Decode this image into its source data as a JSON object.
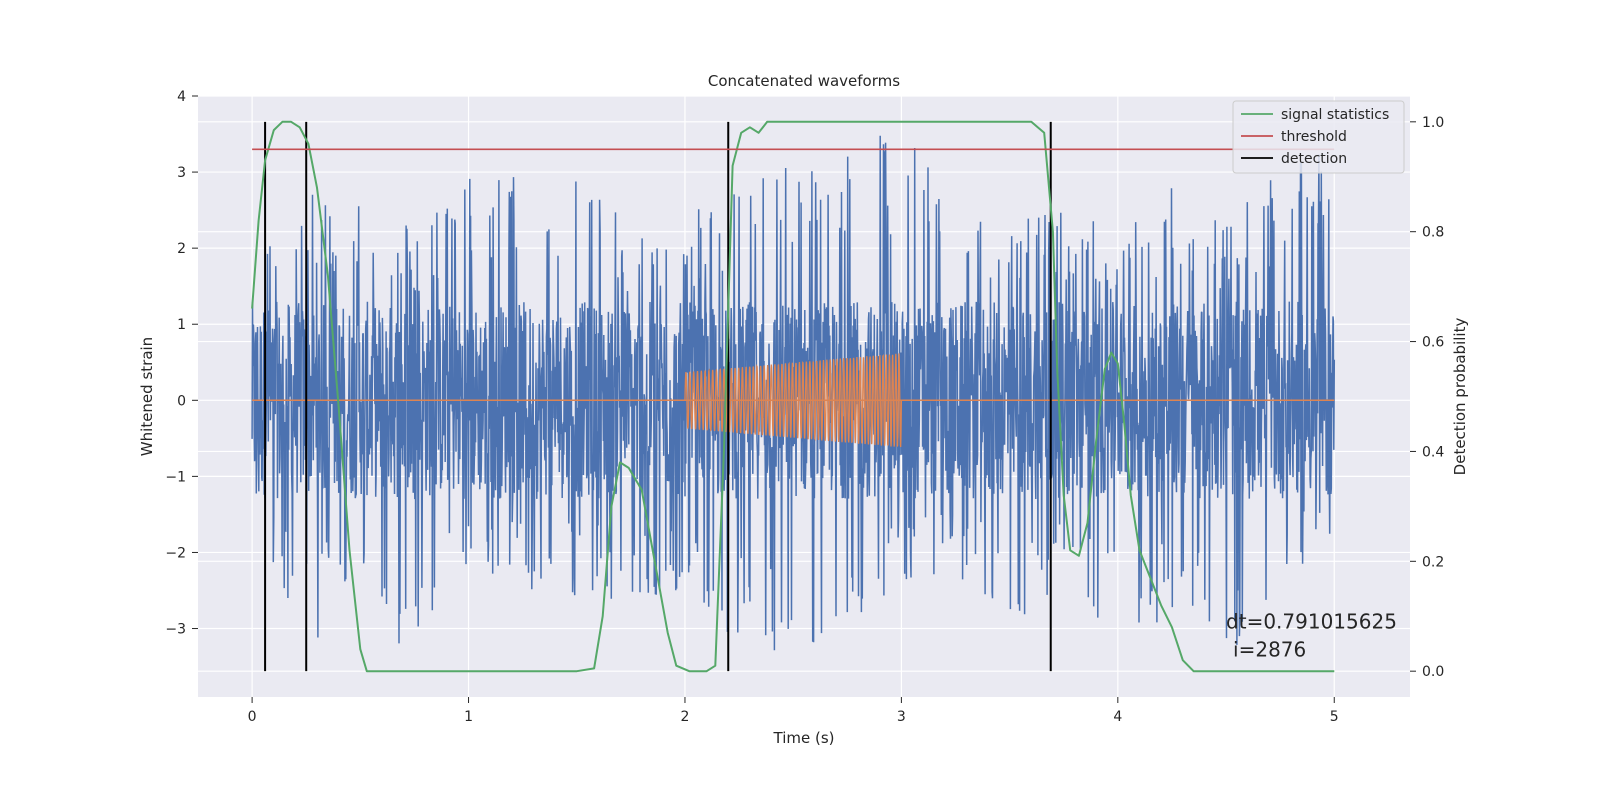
{
  "chart_data": {
    "type": "line",
    "title": "Concatenated waveforms",
    "xlabel": "Time (s)",
    "ylabel": "Whitened strain",
    "y2label": "Detection probability",
    "xlim": [
      -0.25,
      5.35
    ],
    "ylim": [
      -3.9,
      4.0
    ],
    "y2lim": [
      -0.047,
      1.047
    ],
    "xticks": [
      0,
      1,
      2,
      3,
      4,
      5
    ],
    "xtick_labels": [
      "0",
      "1",
      "2",
      "3",
      "4",
      "5"
    ],
    "yticks": [
      -3,
      -2,
      -1,
      0,
      1,
      2,
      3,
      4
    ],
    "ytick_labels": [
      "−3",
      "−2",
      "−1",
      "0",
      "1",
      "2",
      "3",
      "4"
    ],
    "y2ticks": [
      0.0,
      0.2,
      0.4,
      0.6,
      0.8,
      1.0
    ],
    "y2tick_labels": [
      "0.0",
      "0.2",
      "0.4",
      "0.6",
      "0.8",
      "1.0"
    ],
    "grid": true,
    "legend_position": "top-right",
    "legend": [
      {
        "label": "signal statistics",
        "color": "#55a868"
      },
      {
        "label": "threshold",
        "color": "#c44e52"
      },
      {
        "label": "detection",
        "color": "#000000"
      }
    ],
    "series": [
      {
        "name": "whitened strain",
        "axis": "left",
        "color": "#4c72b0",
        "description_kind": "noise",
        "x_range": [
          0,
          5
        ],
        "envelope_max": [
          [
            0,
            2.2
          ],
          [
            0.25,
            2.7
          ],
          [
            0.5,
            2.8
          ],
          [
            0.75,
            2.3
          ],
          [
            1,
            3.0
          ],
          [
            1.25,
            3.0
          ],
          [
            1.5,
            3.2
          ],
          [
            1.75,
            2.2
          ],
          [
            2.0,
            2.4
          ],
          [
            2.25,
            3.0
          ],
          [
            2.5,
            3.2
          ],
          [
            2.75,
            3.6
          ],
          [
            3.0,
            3.6
          ],
          [
            3.25,
            2.8
          ],
          [
            3.5,
            2.5
          ],
          [
            3.75,
            2.6
          ],
          [
            4.0,
            2.2
          ],
          [
            4.25,
            2.9
          ],
          [
            4.5,
            2.4
          ],
          [
            4.75,
            3.0
          ],
          [
            4.95,
            3.3
          ],
          [
            5.0,
            2.1
          ]
        ],
        "envelope_min": [
          [
            0,
            -1.4
          ],
          [
            0.25,
            -3.4
          ],
          [
            0.5,
            -2.2
          ],
          [
            0.67,
            -3.5
          ],
          [
            1.0,
            -2.6
          ],
          [
            1.5,
            -2.7
          ],
          [
            1.75,
            -2.8
          ],
          [
            2.0,
            -2.6
          ],
          [
            2.25,
            -3.2
          ],
          [
            2.4,
            -3.5
          ],
          [
            2.75,
            -3.1
          ],
          [
            3.0,
            -2.4
          ],
          [
            3.25,
            -2.3
          ],
          [
            3.5,
            -2.9
          ],
          [
            3.75,
            -2.7
          ],
          [
            4.0,
            -3.1
          ],
          [
            4.25,
            -3.0
          ],
          [
            4.5,
            -3.4
          ],
          [
            4.75,
            -2.5
          ],
          [
            5.0,
            -2.0
          ]
        ]
      },
      {
        "name": "injected signal",
        "axis": "left",
        "color": "#dd8452",
        "description_kind": "chirp",
        "baseline": 0,
        "chirp_x_range": [
          2.0,
          3.0
        ],
        "chirp_amplitude": [
          0.37,
          0.62
        ],
        "chirp_cycles": 62
      },
      {
        "name": "signal statistics",
        "axis": "right",
        "color": "#55a868",
        "x": [
          0,
          0.03,
          0.06,
          0.1,
          0.14,
          0.18,
          0.22,
          0.26,
          0.3,
          0.35,
          0.4,
          0.45,
          0.5,
          0.53,
          0.6,
          1.0,
          1.5,
          1.58,
          1.62,
          1.66,
          1.7,
          1.74,
          1.8,
          1.86,
          1.92,
          1.96,
          2.02,
          2.1,
          2.14,
          2.18,
          2.22,
          2.26,
          2.3,
          2.34,
          2.38,
          2.42,
          2.5,
          3.0,
          3.6,
          3.66,
          3.7,
          3.72,
          3.75,
          3.78,
          3.82,
          3.86,
          3.9,
          3.94,
          3.97,
          4.0,
          4.03,
          4.06,
          4.1,
          4.15,
          4.2,
          4.25,
          4.3,
          4.35,
          4.5,
          5.0
        ],
        "y": [
          0.66,
          0.82,
          0.93,
          0.985,
          1.0,
          1.0,
          0.99,
          0.96,
          0.88,
          0.72,
          0.48,
          0.22,
          0.04,
          0.0,
          0.0,
          0.0,
          0.0,
          0.005,
          0.1,
          0.3,
          0.38,
          0.37,
          0.33,
          0.2,
          0.07,
          0.01,
          0.0,
          0.0,
          0.01,
          0.4,
          0.92,
          0.98,
          0.99,
          0.98,
          1.0,
          1.0,
          1.0,
          1.0,
          1.0,
          0.98,
          0.8,
          0.55,
          0.32,
          0.22,
          0.21,
          0.27,
          0.42,
          0.55,
          0.58,
          0.56,
          0.45,
          0.32,
          0.22,
          0.17,
          0.12,
          0.08,
          0.02,
          0.0,
          0.0,
          0.0
        ]
      },
      {
        "name": "threshold",
        "axis": "right",
        "color": "#c44e52",
        "x": [
          0,
          5
        ],
        "y": [
          0.95,
          0.95
        ]
      }
    ],
    "detections": [
      0.06,
      0.25,
      2.2,
      3.69
    ],
    "annotation": {
      "text_line1": "dt=0.791015625",
      "text_line2": "i=2876",
      "x": 4.5,
      "y": -3.0
    }
  }
}
